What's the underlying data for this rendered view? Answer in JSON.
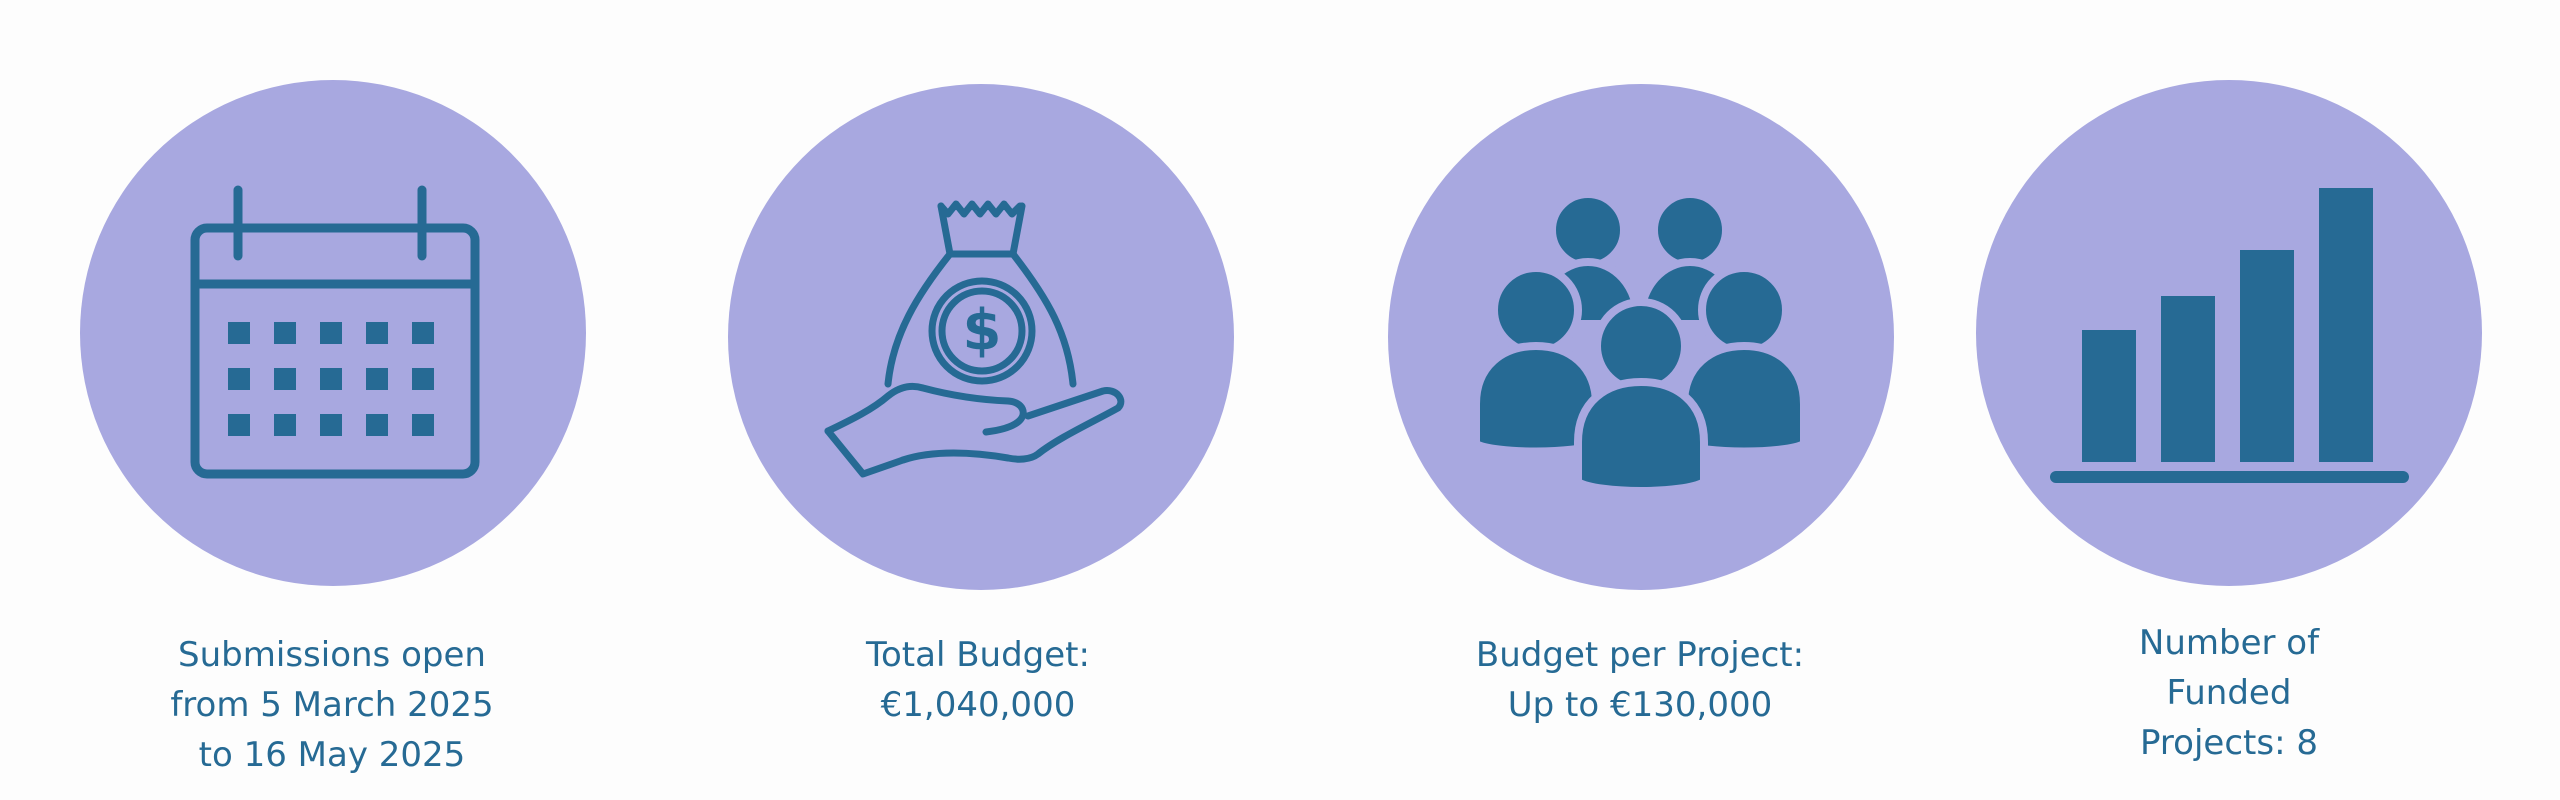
{
  "colors": {
    "circle": "#a8a8e0",
    "icon": "#266a94",
    "text": "#266a94",
    "background": "#fdfdfd"
  },
  "items": [
    {
      "icon": "calendar-icon",
      "caption_lines": [
        "Submissions open",
        "from 5 March 2025",
        "to 16 May 2025"
      ]
    },
    {
      "icon": "money-bag-in-hand-icon",
      "caption_lines": [
        "Total Budget:",
        "€1,040,000"
      ]
    },
    {
      "icon": "people-group-icon",
      "caption_lines": [
        "Budget per Project:",
        "Up to €130,000"
      ]
    },
    {
      "icon": "bar-chart-icon",
      "caption_lines": [
        "Number of",
        "Funded",
        "Projects: 8"
      ]
    }
  ]
}
